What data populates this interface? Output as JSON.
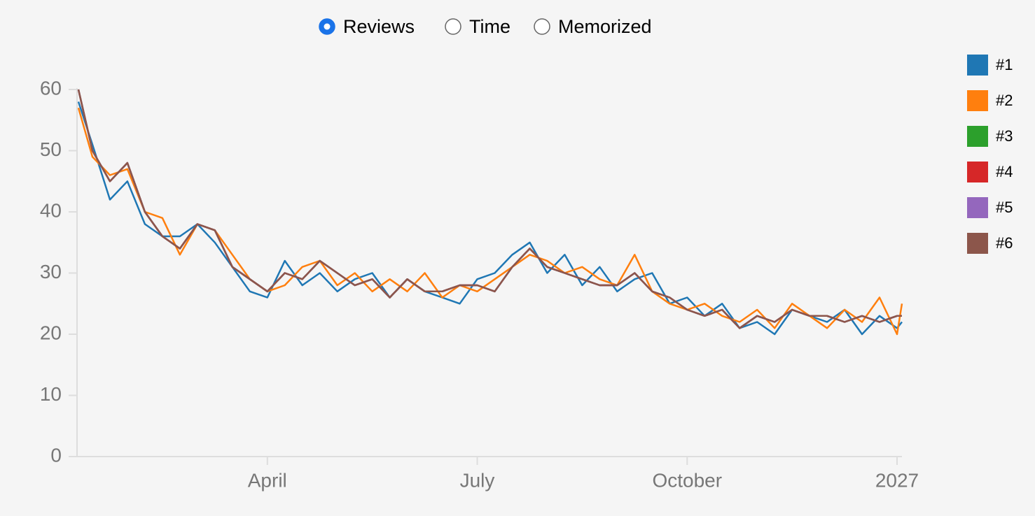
{
  "controls": {
    "options": [
      "Reviews",
      "Time",
      "Memorized"
    ],
    "selected": 0
  },
  "chart_data": {
    "type": "line",
    "x": [
      0.3,
      0.5,
      0.75,
      1,
      1.25,
      1.5,
      1.75,
      2,
      2.25,
      2.5,
      2.75,
      3,
      3.25,
      3.5,
      3.75,
      4,
      4.25,
      4.5,
      4.75,
      5,
      5.25,
      5.5,
      5.75,
      6,
      6.25,
      6.5,
      6.75,
      7,
      7.25,
      7.5,
      7.75,
      8,
      8.25,
      8.5,
      8.75,
      9,
      9.25,
      9.5,
      9.75,
      10,
      10.25,
      10.5,
      10.75,
      11,
      11.25,
      11.5,
      11.75,
      12,
      12.07
    ],
    "series": [
      {
        "name": "#1",
        "color": "#1f77b4",
        "values": [
          58,
          51,
          42,
          45,
          38,
          36,
          36,
          38,
          35,
          31,
          27,
          26,
          32,
          28,
          30,
          27,
          29,
          30,
          26,
          29,
          27,
          26,
          25,
          29,
          30,
          33,
          35,
          30,
          33,
          28,
          31,
          27,
          29,
          30,
          25,
          26,
          23,
          25,
          21,
          22,
          20,
          24,
          23,
          22,
          24,
          20,
          23,
          21,
          22
        ]
      },
      {
        "name": "#2",
        "color": "#ff7f0e",
        "values": [
          57,
          49,
          46,
          47,
          40,
          39,
          33,
          38,
          37,
          33,
          29,
          27,
          28,
          31,
          32,
          28,
          30,
          27,
          29,
          27,
          30,
          26,
          28,
          27,
          29,
          31,
          33,
          32,
          30,
          31,
          29,
          28,
          33,
          27,
          25,
          24,
          25,
          23,
          22,
          24,
          21,
          25,
          23,
          21,
          24,
          22,
          26,
          20,
          25
        ]
      },
      {
        "name": "#3",
        "color": "#2ca02c",
        "values": [
          60,
          50,
          45,
          48,
          40,
          36,
          34,
          38,
          37,
          31,
          29,
          27,
          30,
          29,
          32,
          30,
          28,
          29,
          26,
          29,
          27,
          27,
          28,
          28,
          27,
          31,
          34,
          31,
          30,
          29,
          28,
          28,
          30,
          27,
          26,
          24,
          23,
          24,
          21,
          23,
          22,
          24,
          23,
          23,
          22,
          23,
          22,
          23,
          23
        ]
      },
      {
        "name": "#4",
        "color": "#d62728",
        "values": [
          60,
          50,
          45,
          48,
          40,
          36,
          34,
          38,
          37,
          31,
          29,
          27,
          30,
          29,
          32,
          30,
          28,
          29,
          26,
          29,
          27,
          27,
          28,
          28,
          27,
          31,
          34,
          31,
          30,
          29,
          28,
          28,
          30,
          27,
          26,
          24,
          23,
          24,
          21,
          23,
          22,
          24,
          23,
          23,
          22,
          23,
          22,
          23,
          23
        ]
      },
      {
        "name": "#5",
        "color": "#9467bd",
        "values": [
          60,
          50,
          45,
          48,
          40,
          36,
          34,
          38,
          37,
          31,
          29,
          27,
          30,
          29,
          32,
          30,
          28,
          29,
          26,
          29,
          27,
          27,
          28,
          28,
          27,
          31,
          34,
          31,
          30,
          29,
          28,
          28,
          30,
          27,
          26,
          24,
          23,
          24,
          21,
          23,
          22,
          24,
          23,
          23,
          22,
          23,
          22,
          23,
          23
        ]
      },
      {
        "name": "#6",
        "color": "#8c564b",
        "values": [
          60,
          50,
          45,
          48,
          40,
          36,
          34,
          38,
          37,
          31,
          29,
          27,
          30,
          29,
          32,
          30,
          28,
          29,
          26,
          29,
          27,
          27,
          28,
          28,
          27,
          31,
          34,
          31,
          30,
          29,
          28,
          28,
          30,
          27,
          26,
          24,
          23,
          24,
          21,
          23,
          22,
          24,
          23,
          23,
          22,
          23,
          22,
          23,
          23
        ]
      }
    ],
    "xlim": [
      0.28,
      12.07
    ],
    "xticks": [
      {
        "value": 3,
        "label": "April"
      },
      {
        "value": 6,
        "label": "July"
      },
      {
        "value": 9,
        "label": "October"
      },
      {
        "value": 12,
        "label": "2027"
      }
    ],
    "ylim": [
      0,
      60
    ],
    "yticks": [
      0,
      10,
      20,
      30,
      40,
      50,
      60
    ],
    "grid": false,
    "legend": "right"
  }
}
